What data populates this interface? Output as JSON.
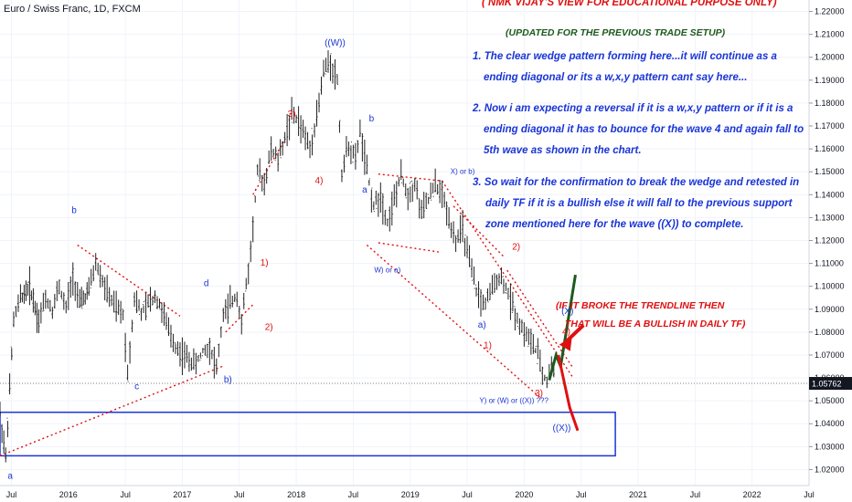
{
  "symbol_label": "Euro / Swiss Franc, 1D, FXCM",
  "price_badge": "1.05762",
  "colors": {
    "accent": "#1a35d6",
    "red": "#e01010",
    "green": "#1d5a1d",
    "candle": "#222222",
    "badge": "#131722"
  },
  "notes": {
    "header": "( NMK VIJAY'S VIEW FOR EDUCATIONAL PURPOSE ONLY)",
    "sub": "(UPDATED FOR THE PREVIOUS TRADE SETUP)",
    "p1_l1": "1. The clear wedge pattern forming here...it will continue as a",
    "p1_l2": "ending diagonal or its a w,x,y pattern cant say here...",
    "p2_l1": "2. Now i am expecting a reversal if it is a w,x,y pattern or if it is a",
    "p2_l2": "ending diagonal it has to bounce for the wave 4 and again fall to",
    "p2_l3": "5th wave as shown in the chart.",
    "p3_l1": "3. So wait for the confirmation to break the wedge and retested in",
    "p3_l2": "daily TF if it is a bullish else it will fall to the previous support",
    "p3_l3": "zone mentioned here for the wave ((X)) to complete.",
    "red_l1": "(IF IT BROKE THE TRENDLINE THEN",
    "red_l2": "THAT WILL BE A  BULLISH IN DAILY TF)"
  },
  "chart_data": {
    "type": "line",
    "title": "Euro / Swiss Franc, 1D, FXCM",
    "y_axis": {
      "side": "right",
      "range": [
        1.013,
        1.225
      ],
      "ticks": [
        "1.22000",
        "1.21000",
        "1.20000",
        "1.19000",
        "1.18000",
        "1.17000",
        "1.16000",
        "1.15000",
        "1.14000",
        "1.13000",
        "1.12000",
        "1.11000",
        "1.10000",
        "1.09000",
        "1.08000",
        "1.07000",
        "1.06000",
        "1.05000",
        "1.04000",
        "1.03000",
        "1.02000"
      ]
    },
    "x_axis": {
      "range": [
        2015.4,
        2022.5
      ],
      "ticks": [
        {
          "label": "Jul",
          "t": 2015.5
        },
        {
          "label": "2016",
          "t": 2016.0
        },
        {
          "label": "Jul",
          "t": 2016.5
        },
        {
          "label": "2017",
          "t": 2017.0
        },
        {
          "label": "Jul",
          "t": 2017.5
        },
        {
          "label": "2018",
          "t": 2018.0
        },
        {
          "label": "Jul",
          "t": 2018.5
        },
        {
          "label": "2019",
          "t": 2019.0
        },
        {
          "label": "Jul",
          "t": 2019.5
        },
        {
          "label": "2020",
          "t": 2020.0
        },
        {
          "label": "Jul",
          "t": 2020.5
        },
        {
          "label": "2021",
          "t": 2021.0
        },
        {
          "label": "Jul",
          "t": 2021.5
        },
        {
          "label": "2022",
          "t": 2022.0
        },
        {
          "label": "Jul",
          "t": 2022.5
        }
      ]
    },
    "last_price": 1.05762,
    "series": [
      {
        "values_x": [
          2015.4,
          2015.45,
          2015.52,
          2015.58,
          2015.66,
          2015.74,
          2015.8,
          2015.86,
          2015.92,
          2015.98,
          2016.04,
          2016.1,
          2016.18,
          2016.24,
          2016.3,
          2016.36,
          2016.42,
          2016.48,
          2016.52,
          2016.58,
          2016.64,
          2016.7,
          2016.76,
          2016.82,
          2016.88,
          2016.94,
          2017.0,
          2017.06,
          2017.12,
          2017.18,
          2017.24,
          2017.3,
          2017.36,
          2017.4,
          2017.44,
          2017.48,
          2017.52,
          2017.56,
          2017.6,
          2017.66,
          2017.72,
          2017.78,
          2017.84,
          2017.9,
          2017.96,
          2018.02,
          2018.08,
          2018.12,
          2018.16,
          2018.2,
          2018.24,
          2018.3,
          2018.36,
          2018.4,
          2018.46,
          2018.52,
          2018.56,
          2018.62,
          2018.68,
          2018.74,
          2018.8,
          2018.86,
          2018.92,
          2018.98,
          2019.04,
          2019.1,
          2019.16,
          2019.22,
          2019.28,
          2019.34,
          2019.4,
          2019.46,
          2019.52,
          2019.58,
          2019.64,
          2019.7,
          2019.76,
          2019.82,
          2019.88,
          2019.94,
          2020.0,
          2020.06,
          2020.12,
          2020.16,
          2020.2,
          2020.24,
          2020.28
        ],
        "values_y": [
          1.045,
          1.025,
          1.085,
          1.095,
          1.1,
          1.085,
          1.095,
          1.09,
          1.1,
          1.09,
          1.105,
          1.092,
          1.098,
          1.11,
          1.102,
          1.095,
          1.09,
          1.088,
          1.062,
          1.095,
          1.088,
          1.092,
          1.096,
          1.09,
          1.08,
          1.074,
          1.07,
          1.068,
          1.066,
          1.072,
          1.074,
          1.064,
          1.088,
          1.09,
          1.094,
          1.096,
          1.084,
          1.1,
          1.115,
          1.15,
          1.145,
          1.16,
          1.155,
          1.165,
          1.175,
          1.172,
          1.165,
          1.16,
          1.17,
          1.18,
          1.194,
          1.198,
          1.19,
          1.15,
          1.162,
          1.155,
          1.168,
          1.15,
          1.135,
          1.14,
          1.128,
          1.138,
          1.148,
          1.14,
          1.145,
          1.132,
          1.138,
          1.144,
          1.14,
          1.13,
          1.12,
          1.125,
          1.11,
          1.098,
          1.092,
          1.096,
          1.104,
          1.102,
          1.094,
          1.086,
          1.08,
          1.076,
          1.07,
          1.062,
          1.058,
          1.066,
          1.058
        ]
      }
    ],
    "annotations": {
      "wave_labels": [
        "a",
        "b",
        "c",
        "d",
        "b)",
        "1)",
        "2)",
        "3)",
        "4)",
        "((W))",
        "b",
        "a",
        "W) or a)",
        "X) or b)",
        "a)",
        "1)",
        "2)",
        "3)",
        "4)",
        "(X)",
        "((X))",
        "Y) or (W) or ((X)) ???"
      ],
      "support_zone": [
        1.026,
        1.045
      ]
    },
    "grid": true
  }
}
